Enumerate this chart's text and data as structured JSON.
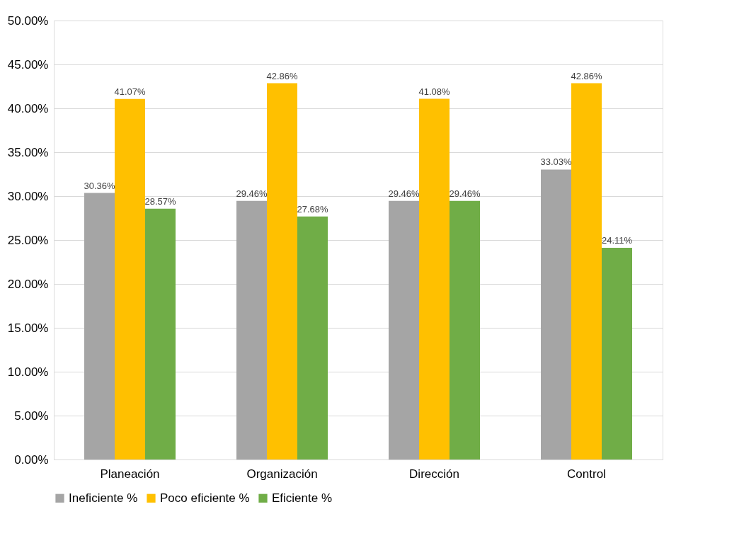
{
  "chart_data": {
    "type": "bar",
    "categories": [
      "Planeación",
      "Organización",
      "Dirección",
      "Control"
    ],
    "series": [
      {
        "name": "Ineficiente %",
        "color": "#a5a5a5",
        "values": [
          30.36,
          29.46,
          29.46,
          33.03
        ],
        "value_labels": [
          "30.36%",
          "29.46%",
          "29.46%",
          "33.03%"
        ]
      },
      {
        "name": "Poco eficiente %",
        "color": "#ffc000",
        "values": [
          41.07,
          42.86,
          41.08,
          42.86
        ],
        "value_labels": [
          "41.07%",
          "42.86%",
          "41.08%",
          "42.86%"
        ]
      },
      {
        "name": "Eficiente %",
        "color": "#70ad47",
        "values": [
          28.57,
          27.68,
          29.46,
          24.11
        ],
        "value_labels": [
          "28.57%",
          "27.68%",
          "29.46%",
          "24.11%"
        ]
      }
    ],
    "ylim": [
      0,
      50
    ],
    "yticks": [
      {
        "value": 0,
        "label": "0.00%"
      },
      {
        "value": 5,
        "label": "5.00%"
      },
      {
        "value": 10,
        "label": "10.00%"
      },
      {
        "value": 15,
        "label": "15.00%"
      },
      {
        "value": 20,
        "label": "20.00%"
      },
      {
        "value": 25,
        "label": "25.00%"
      },
      {
        "value": 30,
        "label": "30.00%"
      },
      {
        "value": 35,
        "label": "35.00%"
      },
      {
        "value": 40,
        "label": "40.00%"
      },
      {
        "value": 45,
        "label": "45.00%"
      },
      {
        "value": 50,
        "label": "50.00%"
      }
    ],
    "grid": "y",
    "legend": "bottom"
  }
}
